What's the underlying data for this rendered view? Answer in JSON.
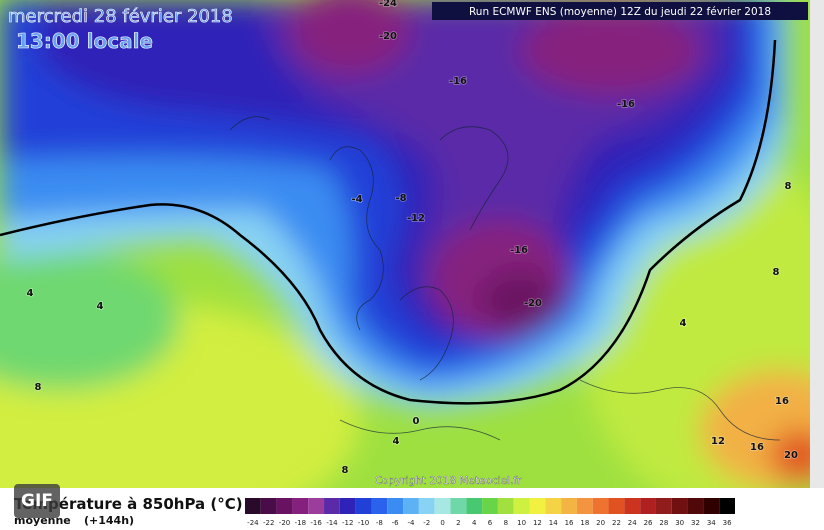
{
  "header": {
    "date": "mercredi 28 février 2018",
    "time": "13:00 locale",
    "run": "Run ECMWF ENS (moyenne) 12Z du jeudi 22 février 2018"
  },
  "copyright": "Copyright 2018 Meteociel.fr",
  "gif_badge": "GIF",
  "legend": {
    "title": "Température à 850hPa (°C)",
    "subtitle": "moyenne",
    "lead": "(+144h)",
    "labels": [
      -24,
      -22,
      -20,
      -18,
      -16,
      -14,
      -12,
      -10,
      -8,
      -6,
      -4,
      -2,
      0,
      2,
      4,
      6,
      8,
      10,
      12,
      14,
      16,
      18,
      20,
      22,
      24,
      26,
      28,
      30,
      32,
      34,
      36
    ],
    "colors": [
      "#2a0a2a",
      "#4a0c48",
      "#6a1262",
      "#86207e",
      "#9c3c9c",
      "#5a2aa8",
      "#2e22b8",
      "#2040d8",
      "#2a62ee",
      "#3a8cf2",
      "#5cb2f4",
      "#88d2f4",
      "#a8e8e4",
      "#70d8a8",
      "#48c870",
      "#68d448",
      "#a2e040",
      "#cef040",
      "#f2f040",
      "#f4d444",
      "#f4b444",
      "#f29440",
      "#ee7230",
      "#e05222",
      "#cc3420",
      "#b02020",
      "#901c1c",
      "#701010",
      "#500808",
      "#300000",
      "#000000"
    ]
  },
  "contour_labels": [
    "-24",
    "-20",
    "-16",
    "-16",
    "-8",
    "-4",
    "-12",
    "-16",
    "-20",
    "4",
    "4",
    "8",
    "8",
    "8",
    "4",
    "0",
    "4",
    "8",
    "12",
    "16",
    "16",
    "20"
  ]
}
